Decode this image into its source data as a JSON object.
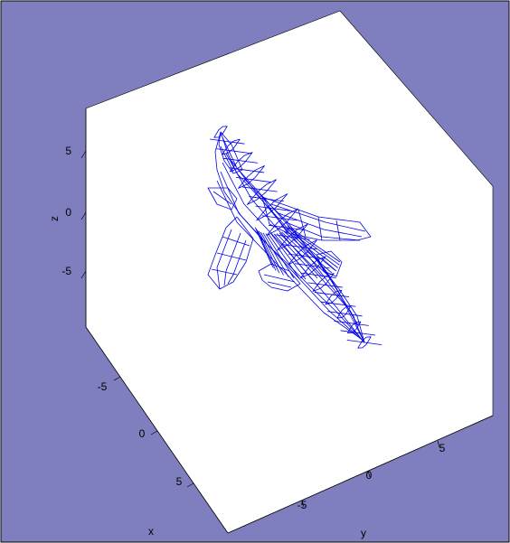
{
  "chart_data": {
    "type": "wireframe-3d",
    "title": "",
    "xlabel": "x",
    "ylabel": "y",
    "zlabel": "z",
    "xlim": [
      -9,
      9
    ],
    "ylim": [
      -9,
      9
    ],
    "zlim": [
      -9,
      9
    ],
    "x_ticks": [
      "-5",
      "0",
      "5"
    ],
    "y_ticks": [
      "-5",
      "0",
      "5"
    ],
    "z_ticks": [
      "5",
      "0",
      "-5"
    ],
    "grid": false,
    "legend": "none",
    "series": [
      {
        "mesh": "aircraft-wireframe",
        "color": "#0000e6"
      }
    ]
  },
  "colors": {
    "figure_background": "#7f7fbf",
    "axes_background": "#ffffff",
    "wireframe": "#0000e6",
    "outer_background": "#ffffff"
  }
}
